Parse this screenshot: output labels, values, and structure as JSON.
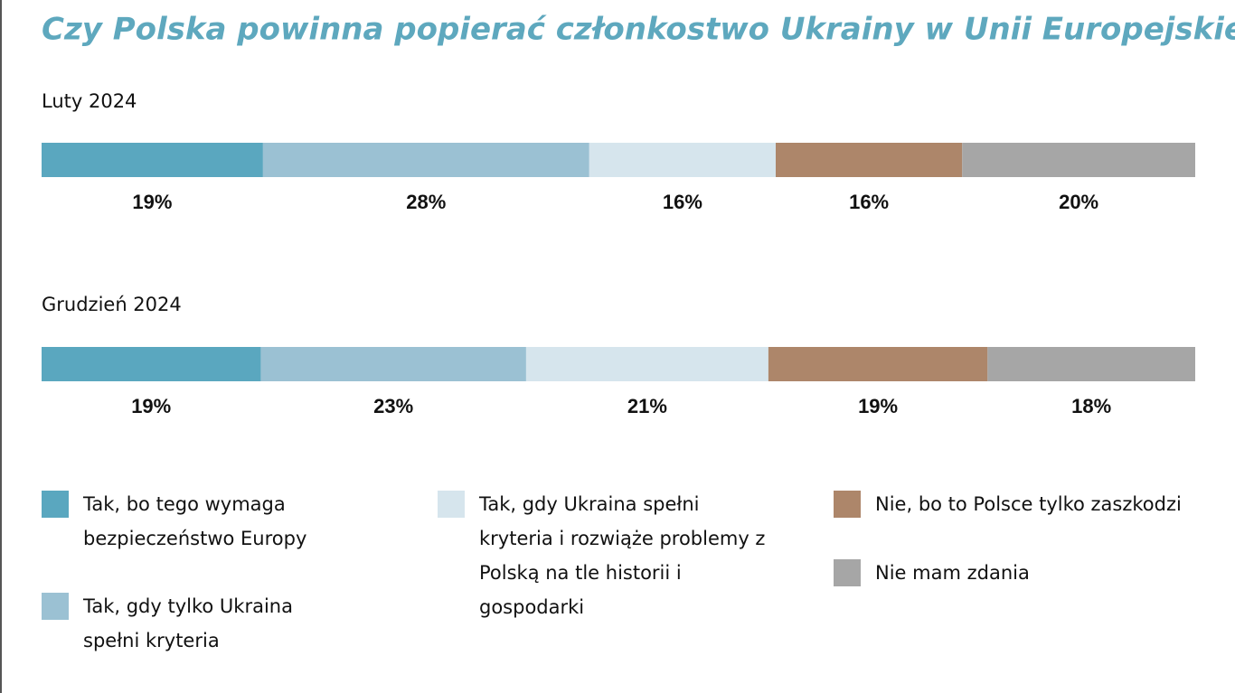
{
  "chart_data": {
    "type": "bar",
    "title": "Czy Polska powinna popierać członkostwo Ukrainy w Unii Europejskiej?",
    "categories": [
      "Luty 2024",
      "Grudzień 2024"
    ],
    "series": [
      {
        "name": "Tak, bo tego wymaga bezpieczeństwo Europy",
        "color": "#5aa7bf",
        "values": [
          19,
          19
        ],
        "value_labels": [
          "19%",
          "19%"
        ]
      },
      {
        "name": "Tak, gdy tylko Ukraina spełni kryteria",
        "color": "#9bc1d3",
        "values": [
          28,
          23
        ],
        "value_labels": [
          "28%",
          "23%"
        ]
      },
      {
        "name": "Tak, gdy Ukraina spełni kryteria i rozwiąże problemy z Polską na tle historii i gospodarki",
        "color": "#d6e5ed",
        "values": [
          16,
          21
        ],
        "value_labels": [
          "16%",
          "21%"
        ]
      },
      {
        "name": "Nie, bo to Polsce tylko zaszkodzi",
        "color": "#ad866a",
        "values": [
          16,
          19
        ],
        "value_labels": [
          "16%",
          "19%"
        ]
      },
      {
        "name": "Nie mam zdania",
        "color": "#a6a6a6",
        "values": [
          20,
          18
        ],
        "value_labels": [
          "20%",
          "18%"
        ]
      }
    ]
  }
}
